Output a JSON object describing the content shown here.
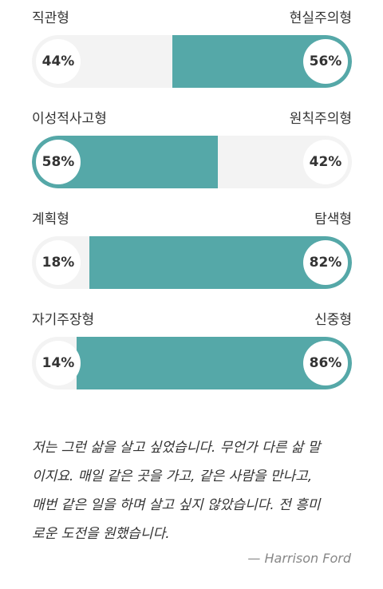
{
  "colors": {
    "accent": "#55a8a8",
    "track": "#f3f3f3"
  },
  "traits": [
    {
      "left_label": "직관형",
      "right_label": "현실주의형",
      "left_percent": "44%",
      "right_percent": "56%",
      "dominant": "right",
      "dominant_value": 56
    },
    {
      "left_label": "이성적사고형",
      "right_label": "원칙주의형",
      "left_percent": "58%",
      "right_percent": "42%",
      "dominant": "left",
      "dominant_value": 58
    },
    {
      "left_label": "계획형",
      "right_label": "탐색형",
      "left_percent": "18%",
      "right_percent": "82%",
      "dominant": "right",
      "dominant_value": 82
    },
    {
      "left_label": "자기주장형",
      "right_label": "신중형",
      "left_percent": "14%",
      "right_percent": "86%",
      "dominant": "right",
      "dominant_value": 86
    }
  ],
  "quote": {
    "lines": [
      "저는 그런 삶을 살고 싶었습니다. 무언가 다른 삶 말",
      "이지요. 매일 같은 곳을 가고, 같은 사람을 만나고,",
      "매번 같은 일을 하며 살고 싶지 않았습니다. 전 흥미",
      "로운 도전을 원했습니다."
    ],
    "author": "— Harrison Ford"
  }
}
